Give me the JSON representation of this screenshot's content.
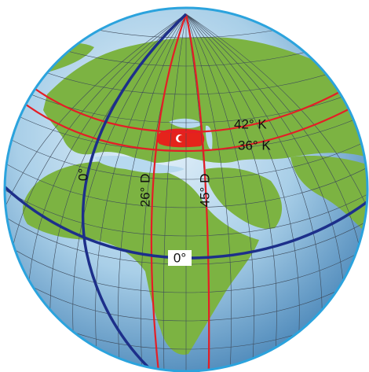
{
  "labels": [
    "42° K",
    "36° K",
    "0°",
    "26° D",
    "45° D",
    "0°"
  ]
}
